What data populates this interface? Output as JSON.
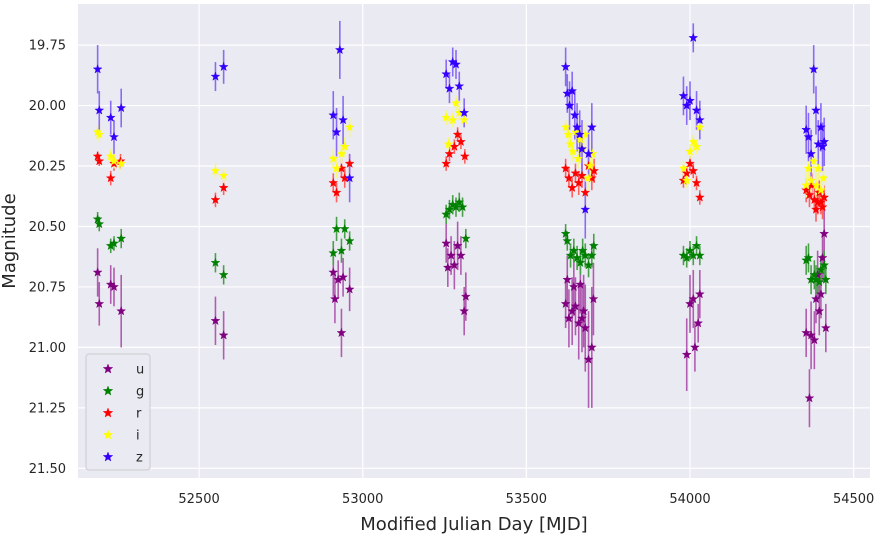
{
  "chart_data": {
    "type": "scatter",
    "title": "",
    "xlabel": "Modified Julian Day [MJD]",
    "ylabel": "Magnitude",
    "xlim": [
      52130,
      54550
    ],
    "ylim": [
      21.54,
      19.58
    ],
    "y_inverted": true,
    "grid": true,
    "legend_position": "lower-left",
    "x_ticks": [
      52500,
      53000,
      53500,
      54000,
      54500
    ],
    "x_tick_labels": [
      "52500",
      "53000",
      "53500",
      "54000",
      "54500"
    ],
    "y_ticks": [
      19.75,
      20.0,
      20.25,
      20.5,
      20.75,
      21.0,
      21.25,
      21.5
    ],
    "y_tick_labels": [
      "19.75",
      "20.00",
      "20.25",
      "20.50",
      "20.75",
      "21.00",
      "21.25",
      "21.50"
    ],
    "series": [
      {
        "name": "u",
        "color": "#800080",
        "errcolor": "#b05cb0",
        "points": [
          [
            52190,
            20.69,
            0.1
          ],
          [
            52195,
            20.82,
            0.09
          ],
          [
            52230,
            20.74,
            0.08
          ],
          [
            52240,
            20.75,
            0.08
          ],
          [
            52262,
            20.85,
            0.15
          ],
          [
            52550,
            20.89,
            0.1
          ],
          [
            52575,
            20.95,
            0.1
          ],
          [
            52910,
            20.69,
            0.1
          ],
          [
            52915,
            20.8,
            0.1
          ],
          [
            52925,
            20.72,
            0.08
          ],
          [
            52935,
            20.94,
            0.1
          ],
          [
            52940,
            20.71,
            0.08
          ],
          [
            52960,
            20.76,
            0.09
          ],
          [
            53255,
            20.57,
            0.08
          ],
          [
            53260,
            20.67,
            0.08
          ],
          [
            53270,
            20.62,
            0.08
          ],
          [
            53280,
            20.66,
            0.1
          ],
          [
            53290,
            20.58,
            0.1
          ],
          [
            53300,
            20.62,
            0.08
          ],
          [
            53310,
            20.85,
            0.1
          ],
          [
            53315,
            20.79,
            0.1
          ],
          [
            53620,
            20.82,
            0.1
          ],
          [
            53625,
            20.72,
            0.1
          ],
          [
            53630,
            20.88,
            0.12
          ],
          [
            53640,
            20.85,
            0.14
          ],
          [
            53645,
            20.75,
            0.12
          ],
          [
            53650,
            20.83,
            0.12
          ],
          [
            53660,
            20.9,
            0.15
          ],
          [
            53665,
            20.74,
            0.12
          ],
          [
            53670,
            20.88,
            0.14
          ],
          [
            53675,
            20.85,
            0.15
          ],
          [
            53680,
            20.92,
            0.18
          ],
          [
            53690,
            21.05,
            0.2
          ],
          [
            53700,
            21.0,
            0.25
          ],
          [
            53705,
            20.8,
            0.15
          ],
          [
            53990,
            21.03,
            0.15
          ],
          [
            54000,
            20.82,
            0.12
          ],
          [
            54010,
            20.8,
            0.12
          ],
          [
            54015,
            21.0,
            0.1
          ],
          [
            54025,
            20.9,
            0.08
          ],
          [
            54030,
            20.78,
            0.1
          ],
          [
            54355,
            20.94,
            0.1
          ],
          [
            54365,
            21.21,
            0.12
          ],
          [
            54370,
            20.95,
            0.14
          ],
          [
            54380,
            20.97,
            0.12
          ],
          [
            54385,
            20.8,
            0.1
          ],
          [
            54390,
            20.7,
            0.1
          ],
          [
            54395,
            20.85,
            0.1
          ],
          [
            54400,
            20.78,
            0.1
          ],
          [
            54405,
            20.63,
            0.1
          ],
          [
            54410,
            20.53,
            0.1
          ],
          [
            54415,
            20.92,
            0.1
          ]
        ]
      },
      {
        "name": "g",
        "color": "#008000",
        "errcolor": "#4aa04a",
        "points": [
          [
            52190,
            20.47,
            0.03
          ],
          [
            52195,
            20.49,
            0.03
          ],
          [
            52230,
            20.58,
            0.03
          ],
          [
            52240,
            20.57,
            0.03
          ],
          [
            52262,
            20.55,
            0.04
          ],
          [
            52550,
            20.65,
            0.04
          ],
          [
            52575,
            20.7,
            0.04
          ],
          [
            52910,
            20.61,
            0.05
          ],
          [
            52920,
            20.51,
            0.05
          ],
          [
            52935,
            20.6,
            0.05
          ],
          [
            52945,
            20.51,
            0.04
          ],
          [
            52960,
            20.56,
            0.04
          ],
          [
            53255,
            20.45,
            0.04
          ],
          [
            53265,
            20.43,
            0.04
          ],
          [
            53275,
            20.41,
            0.04
          ],
          [
            53285,
            20.42,
            0.04
          ],
          [
            53295,
            20.4,
            0.04
          ],
          [
            53305,
            20.42,
            0.04
          ],
          [
            53315,
            20.55,
            0.04
          ],
          [
            53620,
            20.53,
            0.04
          ],
          [
            53625,
            20.56,
            0.04
          ],
          [
            53635,
            20.62,
            0.05
          ],
          [
            53645,
            20.6,
            0.05
          ],
          [
            53655,
            20.63,
            0.05
          ],
          [
            53665,
            20.65,
            0.05
          ],
          [
            53672,
            20.6,
            0.05
          ],
          [
            53680,
            20.62,
            0.05
          ],
          [
            53690,
            20.66,
            0.05
          ],
          [
            53700,
            20.62,
            0.05
          ],
          [
            53706,
            20.58,
            0.05
          ],
          [
            53980,
            20.62,
            0.04
          ],
          [
            53990,
            20.63,
            0.04
          ],
          [
            54000,
            20.6,
            0.04
          ],
          [
            54010,
            20.62,
            0.04
          ],
          [
            54020,
            20.58,
            0.04
          ],
          [
            54030,
            20.62,
            0.04
          ],
          [
            54355,
            20.64,
            0.06
          ],
          [
            54362,
            20.63,
            0.06
          ],
          [
            54370,
            20.72,
            0.06
          ],
          [
            54380,
            20.7,
            0.06
          ],
          [
            54385,
            20.72,
            0.06
          ],
          [
            54395,
            20.73,
            0.06
          ],
          [
            54400,
            20.68,
            0.06
          ],
          [
            54410,
            20.66,
            0.06
          ],
          [
            54415,
            20.72,
            0.06
          ]
        ]
      },
      {
        "name": "r",
        "color": "#ff0000",
        "errcolor": "#ff6060",
        "points": [
          [
            52190,
            20.21,
            0.02
          ],
          [
            52195,
            20.23,
            0.02
          ],
          [
            52230,
            20.3,
            0.03
          ],
          [
            52240,
            20.24,
            0.03
          ],
          [
            52260,
            20.23,
            0.03
          ],
          [
            52550,
            20.39,
            0.03
          ],
          [
            52575,
            20.34,
            0.03
          ],
          [
            52910,
            20.32,
            0.04
          ],
          [
            52920,
            20.36,
            0.04
          ],
          [
            52935,
            20.26,
            0.04
          ],
          [
            52945,
            20.3,
            0.04
          ],
          [
            52960,
            20.24,
            0.04
          ],
          [
            53255,
            20.24,
            0.03
          ],
          [
            53265,
            20.2,
            0.03
          ],
          [
            53280,
            20.17,
            0.03
          ],
          [
            53290,
            20.12,
            0.03
          ],
          [
            53300,
            20.15,
            0.03
          ],
          [
            53312,
            20.21,
            0.03
          ],
          [
            53620,
            20.26,
            0.04
          ],
          [
            53630,
            20.3,
            0.04
          ],
          [
            53640,
            20.34,
            0.04
          ],
          [
            53650,
            20.28,
            0.04
          ],
          [
            53660,
            20.32,
            0.05
          ],
          [
            53670,
            20.29,
            0.05
          ],
          [
            53680,
            20.36,
            0.05
          ],
          [
            53690,
            20.25,
            0.05
          ],
          [
            53700,
            20.3,
            0.05
          ],
          [
            53707,
            20.27,
            0.05
          ],
          [
            53980,
            20.31,
            0.03
          ],
          [
            53990,
            20.28,
            0.03
          ],
          [
            54000,
            20.24,
            0.03
          ],
          [
            54010,
            20.27,
            0.03
          ],
          [
            54020,
            20.32,
            0.03
          ],
          [
            54030,
            20.38,
            0.03
          ],
          [
            54355,
            20.35,
            0.05
          ],
          [
            54365,
            20.37,
            0.05
          ],
          [
            54372,
            20.33,
            0.05
          ],
          [
            54380,
            20.39,
            0.05
          ],
          [
            54385,
            20.43,
            0.05
          ],
          [
            54390,
            20.4,
            0.05
          ],
          [
            54395,
            20.36,
            0.05
          ],
          [
            54400,
            20.4,
            0.05
          ],
          [
            54405,
            20.42,
            0.05
          ],
          [
            54410,
            20.38,
            0.05
          ]
        ]
      },
      {
        "name": "i",
        "color": "#ffff00",
        "errcolor": "#f5f58a",
        "points": [
          [
            52190,
            20.11,
            0.03
          ],
          [
            52195,
            20.12,
            0.03
          ],
          [
            52230,
            20.21,
            0.03
          ],
          [
            52240,
            20.23,
            0.03
          ],
          [
            52262,
            20.24,
            0.03
          ],
          [
            52550,
            20.27,
            0.03
          ],
          [
            52575,
            20.29,
            0.03
          ],
          [
            52910,
            20.22,
            0.04
          ],
          [
            52920,
            20.26,
            0.04
          ],
          [
            52935,
            20.2,
            0.04
          ],
          [
            52945,
            20.17,
            0.04
          ],
          [
            52960,
            20.09,
            0.04
          ],
          [
            53255,
            20.05,
            0.03
          ],
          [
            53262,
            20.16,
            0.03
          ],
          [
            53275,
            20.06,
            0.03
          ],
          [
            53285,
            19.99,
            0.03
          ],
          [
            53295,
            20.03,
            0.03
          ],
          [
            53310,
            20.06,
            0.03
          ],
          [
            53620,
            20.09,
            0.03
          ],
          [
            53628,
            20.12,
            0.04
          ],
          [
            53635,
            20.16,
            0.04
          ],
          [
            53642,
            20.19,
            0.04
          ],
          [
            53650,
            20.11,
            0.04
          ],
          [
            53658,
            20.22,
            0.04
          ],
          [
            53665,
            20.14,
            0.04
          ],
          [
            53672,
            20.18,
            0.04
          ],
          [
            53680,
            20.12,
            0.05
          ],
          [
            53688,
            20.3,
            0.05
          ],
          [
            53695,
            20.25,
            0.05
          ],
          [
            53702,
            20.2,
            0.05
          ],
          [
            53980,
            20.26,
            0.03
          ],
          [
            53990,
            20.31,
            0.03
          ],
          [
            54000,
            20.19,
            0.03
          ],
          [
            54010,
            20.15,
            0.03
          ],
          [
            54020,
            20.17,
            0.03
          ],
          [
            54030,
            20.09,
            0.03
          ],
          [
            54355,
            20.33,
            0.05
          ],
          [
            54362,
            20.26,
            0.05
          ],
          [
            54370,
            20.31,
            0.05
          ],
          [
            54378,
            20.23,
            0.05
          ],
          [
            54385,
            20.33,
            0.05
          ],
          [
            54392,
            20.26,
            0.05
          ],
          [
            54400,
            20.35,
            0.05
          ],
          [
            54408,
            20.3,
            0.05
          ]
        ]
      },
      {
        "name": "z",
        "color": "#3300ff",
        "errcolor": "#8a6bf5",
        "points": [
          [
            52190,
            19.85,
            0.1
          ],
          [
            52195,
            20.02,
            0.08
          ],
          [
            52230,
            20.05,
            0.07
          ],
          [
            52240,
            20.13,
            0.07
          ],
          [
            52262,
            20.01,
            0.08
          ],
          [
            52550,
            19.88,
            0.06
          ],
          [
            52575,
            19.84,
            0.07
          ],
          [
            52910,
            20.04,
            0.1
          ],
          [
            52920,
            20.11,
            0.1
          ],
          [
            52930,
            19.77,
            0.12
          ],
          [
            52940,
            20.06,
            0.1
          ],
          [
            52960,
            20.3,
            0.1
          ],
          [
            53255,
            19.87,
            0.06
          ],
          [
            53265,
            19.93,
            0.06
          ],
          [
            53275,
            19.82,
            0.06
          ],
          [
            53285,
            19.83,
            0.06
          ],
          [
            53295,
            19.92,
            0.06
          ],
          [
            53310,
            20.03,
            0.06
          ],
          [
            53620,
            19.84,
            0.08
          ],
          [
            53625,
            19.95,
            0.08
          ],
          [
            53632,
            20.0,
            0.1
          ],
          [
            53640,
            19.94,
            0.08
          ],
          [
            53648,
            20.04,
            0.1
          ],
          [
            53655,
            20.09,
            0.1
          ],
          [
            53663,
            20.12,
            0.1
          ],
          [
            53670,
            20.18,
            0.12
          ],
          [
            53680,
            20.43,
            0.12
          ],
          [
            53690,
            20.2,
            0.1
          ],
          [
            53700,
            20.09,
            0.1
          ],
          [
            53980,
            19.96,
            0.08
          ],
          [
            53990,
            20.0,
            0.08
          ],
          [
            54000,
            19.98,
            0.08
          ],
          [
            54010,
            19.72,
            0.06
          ],
          [
            54020,
            20.02,
            0.08
          ],
          [
            54030,
            20.06,
            0.08
          ],
          [
            54355,
            20.1,
            0.1
          ],
          [
            54362,
            20.13,
            0.1
          ],
          [
            54370,
            20.2,
            0.1
          ],
          [
            54378,
            19.85,
            0.1
          ],
          [
            54385,
            20.02,
            0.1
          ],
          [
            54392,
            20.16,
            0.1
          ],
          [
            54400,
            20.09,
            0.1
          ],
          [
            54405,
            20.17,
            0.1
          ],
          [
            54410,
            20.15,
            0.1
          ]
        ]
      }
    ]
  }
}
